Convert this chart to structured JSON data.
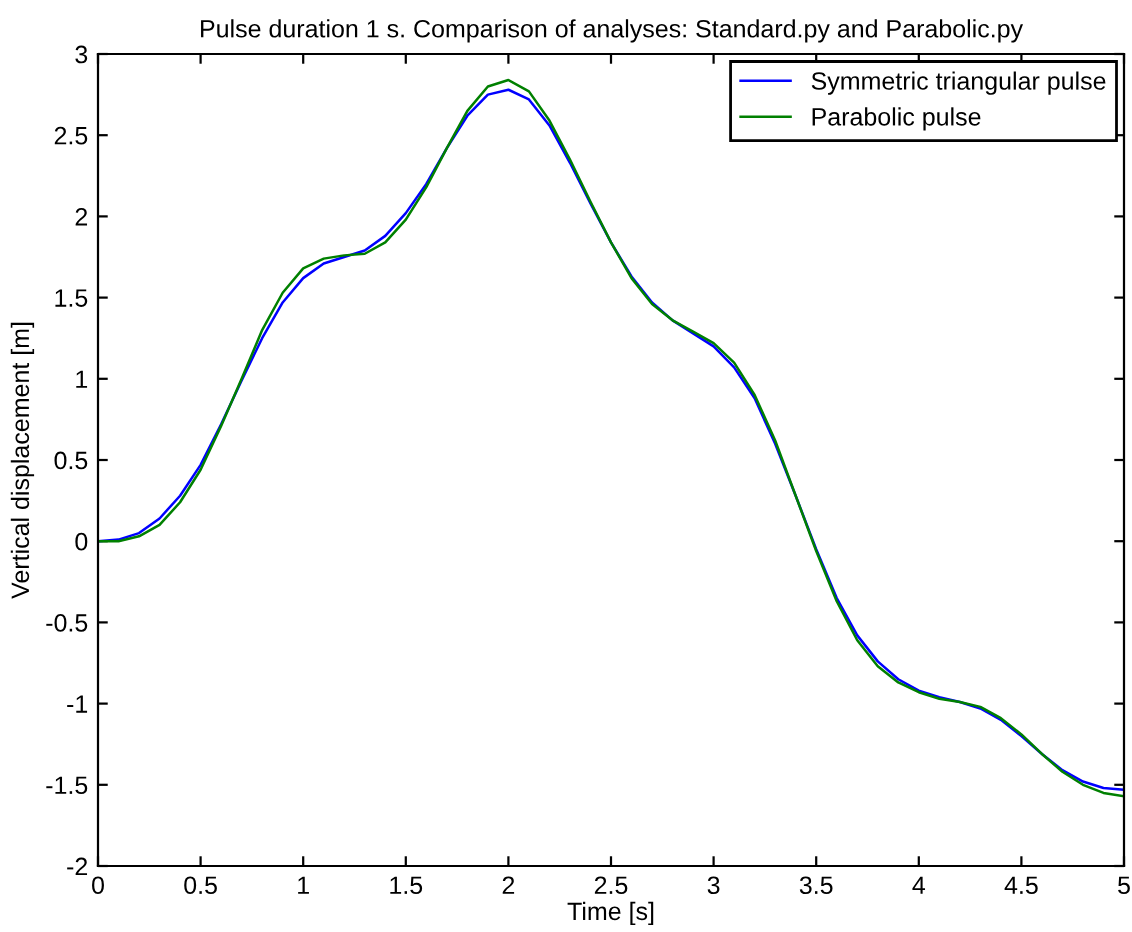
{
  "chart_data": {
    "type": "line",
    "title": "Pulse duration 1 s. Comparison of analyses: Standard.py and Parabolic.py",
    "xlabel": "Time [s]",
    "ylabel": "Vertical displacement [m]",
    "x": [
      0,
      0.1,
      0.2,
      0.3,
      0.4,
      0.5,
      0.6,
      0.7,
      0.8,
      0.9,
      1.0,
      1.1,
      1.2,
      1.3,
      1.4,
      1.5,
      1.6,
      1.7,
      1.8,
      1.9,
      2.0,
      2.1,
      2.2,
      2.3,
      2.4,
      2.5,
      2.6,
      2.7,
      2.8,
      2.9,
      3.0,
      3.1,
      3.2,
      3.3,
      3.4,
      3.5,
      3.6,
      3.7,
      3.8,
      3.9,
      4.0,
      4.1,
      4.2,
      4.3,
      4.4,
      4.5,
      4.6,
      4.7,
      4.8,
      4.9,
      5.0
    ],
    "series": [
      {
        "name": "Symmetric triangular pulse",
        "color": "#0000ff",
        "values": [
          0,
          0.01,
          0.05,
          0.14,
          0.28,
          0.47,
          0.72,
          0.99,
          1.25,
          1.47,
          1.62,
          1.71,
          1.75,
          1.79,
          1.88,
          2.02,
          2.2,
          2.42,
          2.62,
          2.75,
          2.78,
          2.72,
          2.56,
          2.33,
          2.08,
          1.84,
          1.63,
          1.47,
          1.36,
          1.28,
          1.2,
          1.07,
          0.88,
          0.6,
          0.28,
          -0.05,
          -0.35,
          -0.58,
          -0.74,
          -0.85,
          -0.92,
          -0.96,
          -0.99,
          -1.03,
          -1.1,
          -1.2,
          -1.31,
          -1.41,
          -1.48,
          -1.52,
          -1.53
        ]
      },
      {
        "name": "Parabolic pulse",
        "color": "#008000",
        "values": [
          0,
          0.0,
          0.03,
          0.1,
          0.24,
          0.44,
          0.71,
          1.0,
          1.3,
          1.53,
          1.68,
          1.74,
          1.76,
          1.77,
          1.84,
          1.98,
          2.18,
          2.42,
          2.65,
          2.8,
          2.84,
          2.77,
          2.59,
          2.35,
          2.09,
          1.84,
          1.62,
          1.46,
          1.36,
          1.29,
          1.22,
          1.1,
          0.9,
          0.62,
          0.28,
          -0.06,
          -0.37,
          -0.61,
          -0.77,
          -0.87,
          -0.93,
          -0.97,
          -0.99,
          -1.02,
          -1.09,
          -1.19,
          -1.31,
          -1.42,
          -1.5,
          -1.55,
          -1.57
        ]
      }
    ],
    "xlim": [
      0,
      5
    ],
    "ylim": [
      -2,
      3
    ],
    "xticks": [
      0,
      0.5,
      1,
      1.5,
      2,
      2.5,
      3,
      3.5,
      4,
      4.5,
      5
    ],
    "yticks": [
      -2,
      -1.5,
      -1,
      -0.5,
      0,
      0.5,
      1,
      1.5,
      2,
      2.5,
      3
    ],
    "legend": "top right",
    "grid": false
  }
}
